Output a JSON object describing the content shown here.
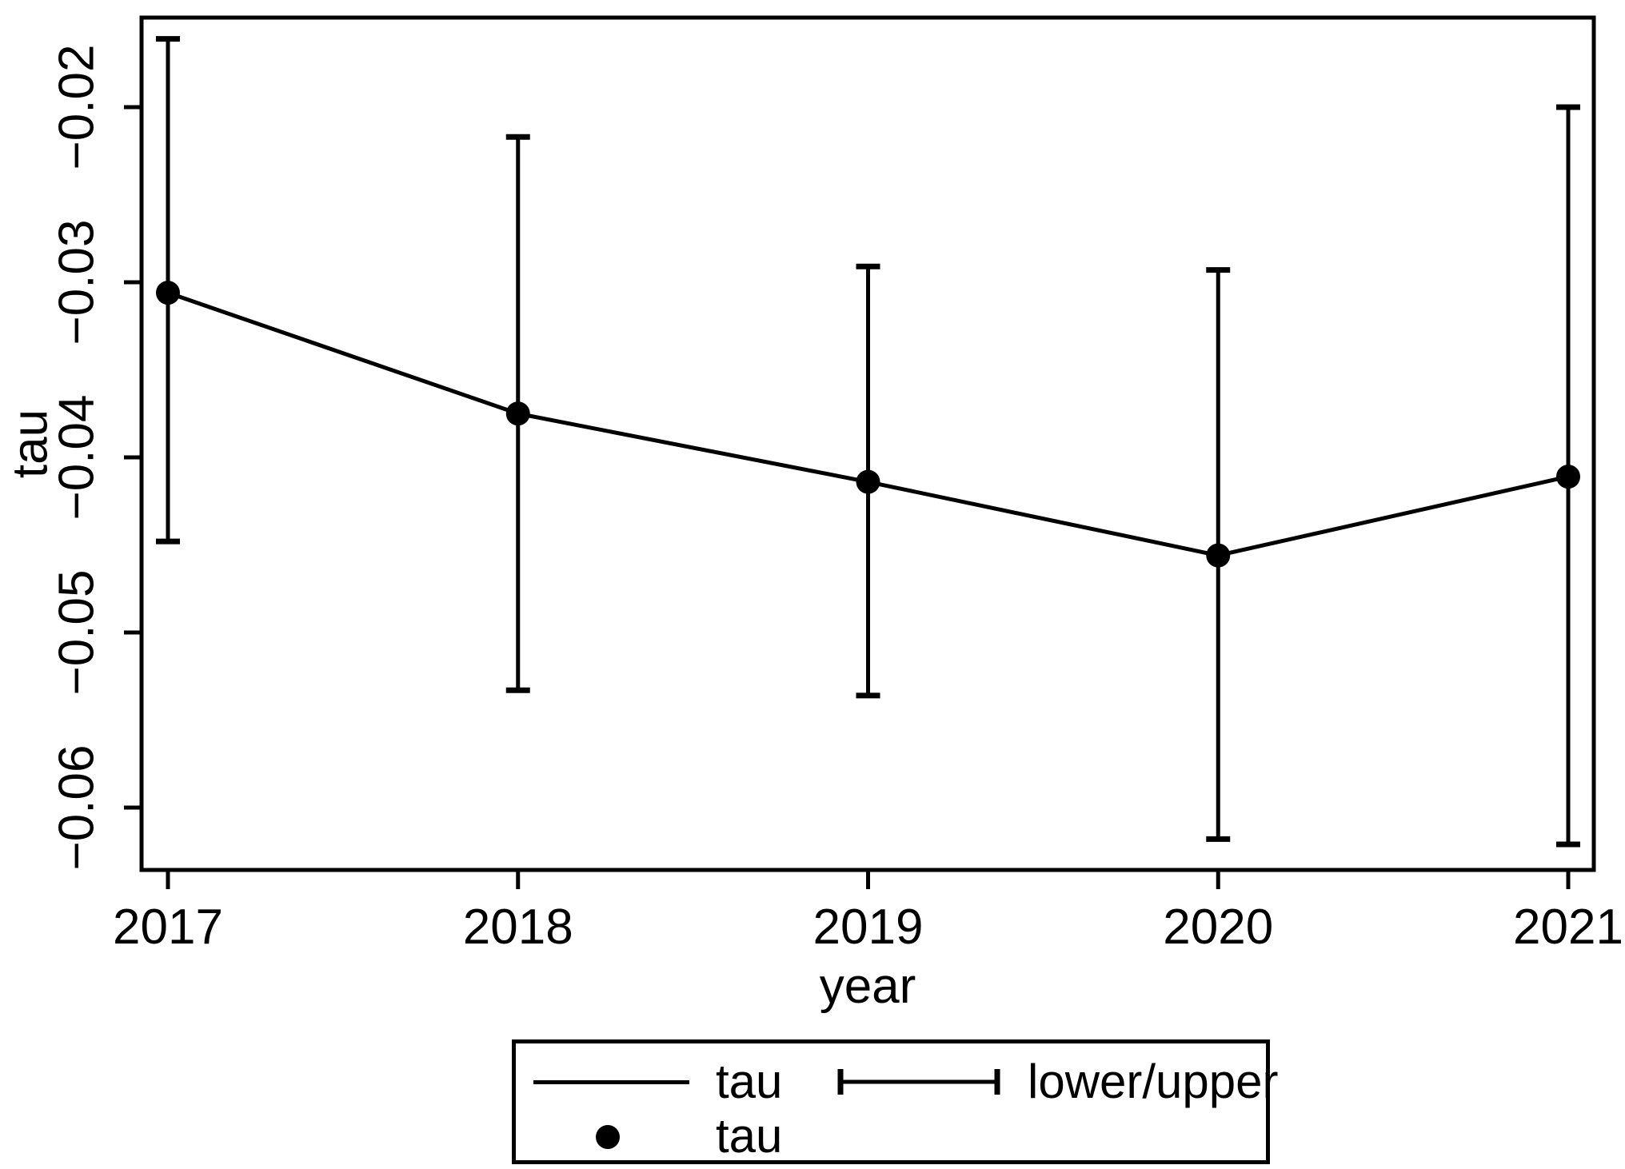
{
  "figure": {
    "background": "#ffffff",
    "ink": "#000000"
  },
  "chart_data": {
    "type": "line",
    "title": "",
    "xlabel": "year",
    "ylabel": "tau",
    "categories": [
      2017,
      2018,
      2019,
      2020,
      2021
    ],
    "series": [
      {
        "name": "tau",
        "role": "point-estimate-line-and-markers",
        "values": [
          -0.0306,
          -0.0375,
          -0.0414,
          -0.0456,
          -0.0411
        ]
      },
      {
        "name": "lower",
        "role": "error-bar-lower-bound",
        "values": [
          -0.0448,
          -0.0533,
          -0.0536,
          -0.0618,
          -0.0621
        ]
      },
      {
        "name": "upper",
        "role": "error-bar-upper-bound",
        "values": [
          -0.0161,
          -0.0217,
          -0.0291,
          -0.0293,
          -0.02
        ]
      }
    ],
    "yticks": [
      -0.02,
      -0.03,
      -0.04,
      -0.05,
      -0.06
    ],
    "ylim": [
      -0.0636,
      -0.0149
    ],
    "xlim_categories": [
      "2017",
      "2021"
    ],
    "grid": false,
    "line_color": "#000000",
    "marker": "filled-circle",
    "legend": {
      "position": "below-plot-center",
      "entries": [
        {
          "sample": "line",
          "label": "tau"
        },
        {
          "sample": "error-bar",
          "label": "lower/upper"
        },
        {
          "sample": "dot",
          "label": "tau"
        }
      ]
    }
  }
}
